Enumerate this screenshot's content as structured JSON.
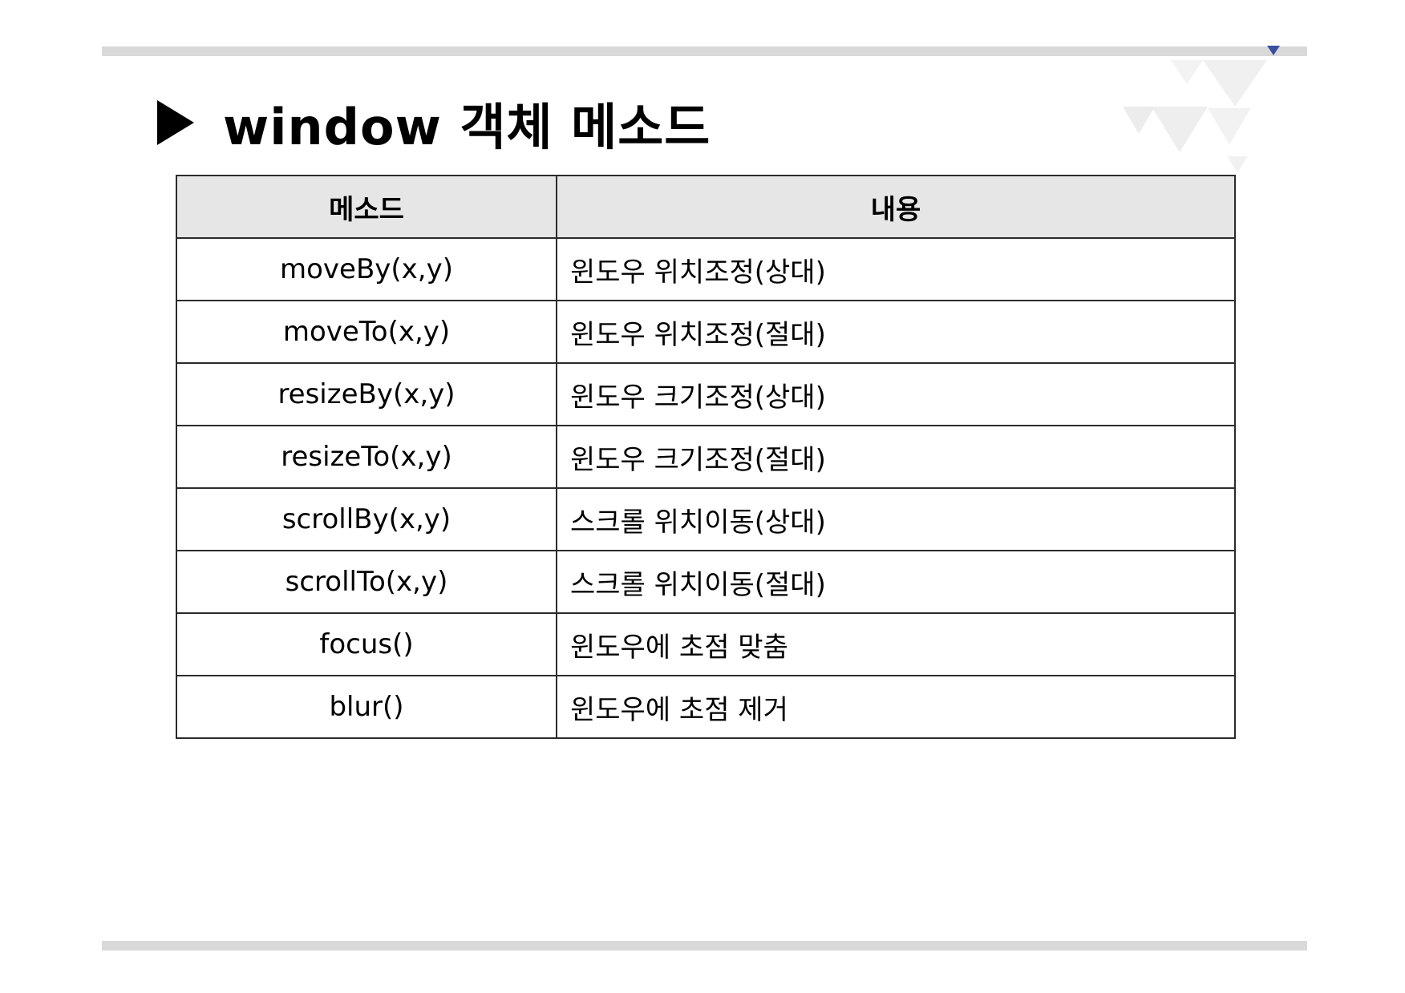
{
  "slide": {
    "title": "window 객체 메소드",
    "accent_color": "#3b4fa0",
    "bar_color": "#d9d9d9"
  },
  "table": {
    "headers": [
      "메소드",
      "내용"
    ],
    "rows": [
      {
        "method": "moveBy(x,y)",
        "description": "윈도우 위치조정(상대)"
      },
      {
        "method": "moveTo(x,y)",
        "description": "윈도우 위치조정(절대)"
      },
      {
        "method": "resizeBy(x,y)",
        "description": "윈도우 크기조정(상대)"
      },
      {
        "method": "resizeTo(x,y)",
        "description": "윈도우 크기조정(절대)"
      },
      {
        "method": "scrollBy(x,y)",
        "description": "스크롤 위치이동(상대)"
      },
      {
        "method": "scrollTo(x,y)",
        "description": "스크롤 위치이동(절대)"
      },
      {
        "method": "focus()",
        "description": "윈도우에 초점 맞춤"
      },
      {
        "method": "blur()",
        "description": "윈도우에 초점 제거"
      }
    ]
  }
}
